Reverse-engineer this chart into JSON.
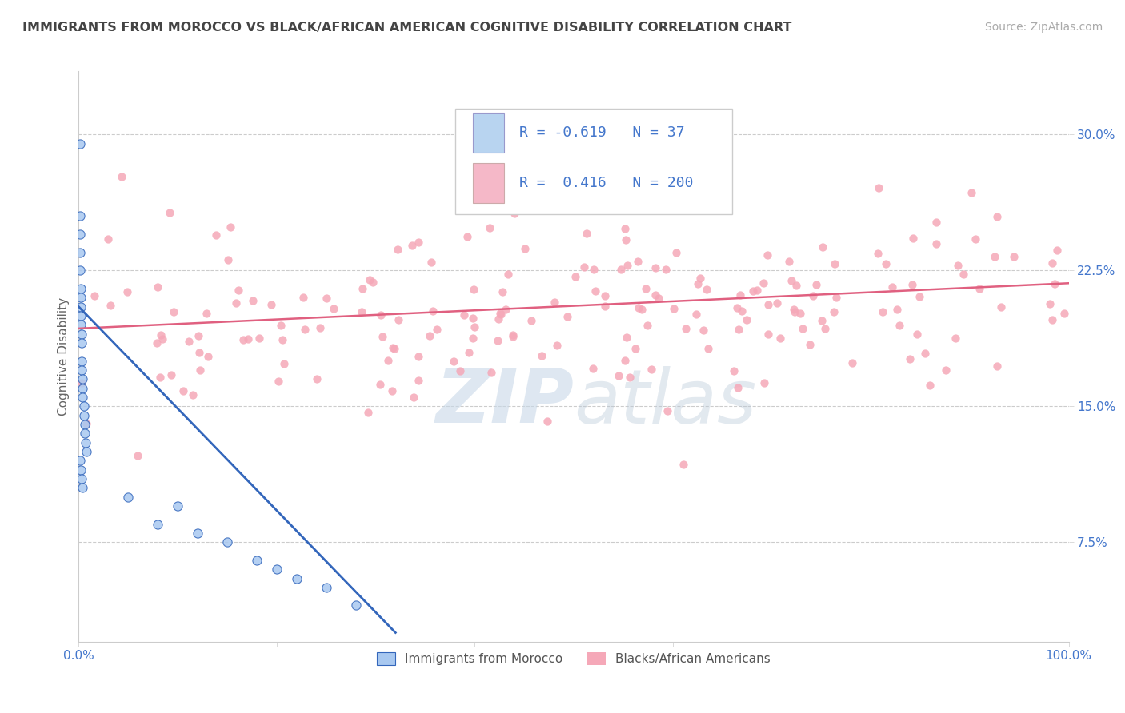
{
  "title": "IMMIGRANTS FROM MOROCCO VS BLACK/AFRICAN AMERICAN COGNITIVE DISABILITY CORRELATION CHART",
  "source_text": "Source: ZipAtlas.com",
  "ylabel": "Cognitive Disability",
  "xlim": [
    0,
    1.0
  ],
  "ylim": [
    0.02,
    0.335
  ],
  "x_tick_labels": [
    "0.0%",
    "",
    "",
    "",
    "",
    "100.0%"
  ],
  "x_tick_values": [
    0.0,
    0.2,
    0.4,
    0.6,
    0.8,
    1.0
  ],
  "y_tick_labels": [
    "7.5%",
    "15.0%",
    "22.5%",
    "30.0%"
  ],
  "y_tick_values": [
    0.075,
    0.15,
    0.225,
    0.3
  ],
  "legend_r1": "-0.619",
  "legend_n1": "37",
  "legend_r2": "0.416",
  "legend_n2": "200",
  "color_blue_scatter": "#a8c8f0",
  "color_blue_line": "#3366bb",
  "color_pink_scatter": "#f5a8b8",
  "color_pink_line": "#e06080",
  "color_legend_blue_box": "#b8d4f0",
  "color_legend_pink_box": "#f5b8c8",
  "watermark_color": "#c8d8e8",
  "background_color": "#ffffff",
  "grid_color": "#cccccc",
  "title_color": "#444444",
  "axis_label_color": "#4477cc",
  "blue_scatter_x": [
    0.001,
    0.001,
    0.001,
    0.001,
    0.001,
    0.002,
    0.002,
    0.002,
    0.002,
    0.002,
    0.003,
    0.003,
    0.003,
    0.003,
    0.004,
    0.004,
    0.004,
    0.005,
    0.005,
    0.006,
    0.006,
    0.007,
    0.008,
    0.001,
    0.002,
    0.003,
    0.004,
    0.05,
    0.08,
    0.1,
    0.12,
    0.15,
    0.18,
    0.2,
    0.22,
    0.25,
    0.28
  ],
  "blue_scatter_y": [
    0.295,
    0.255,
    0.245,
    0.235,
    0.225,
    0.215,
    0.21,
    0.205,
    0.2,
    0.195,
    0.19,
    0.185,
    0.175,
    0.17,
    0.165,
    0.16,
    0.155,
    0.15,
    0.145,
    0.14,
    0.135,
    0.13,
    0.125,
    0.12,
    0.115,
    0.11,
    0.105,
    0.1,
    0.085,
    0.095,
    0.08,
    0.075,
    0.065,
    0.06,
    0.055,
    0.05,
    0.04
  ],
  "pink_trendline_x0": 0.0,
  "pink_trendline_x1": 1.0,
  "pink_trendline_y0": 0.193,
  "pink_trendline_y1": 0.218,
  "blue_trendline_x0": 0.0,
  "blue_trendline_x1": 0.32,
  "blue_trendline_y0": 0.205,
  "blue_trendline_y1": 0.025,
  "title_fontsize": 11.5,
  "source_fontsize": 10,
  "tick_fontsize": 11,
  "legend_fontsize": 13,
  "ylabel_fontsize": 11
}
